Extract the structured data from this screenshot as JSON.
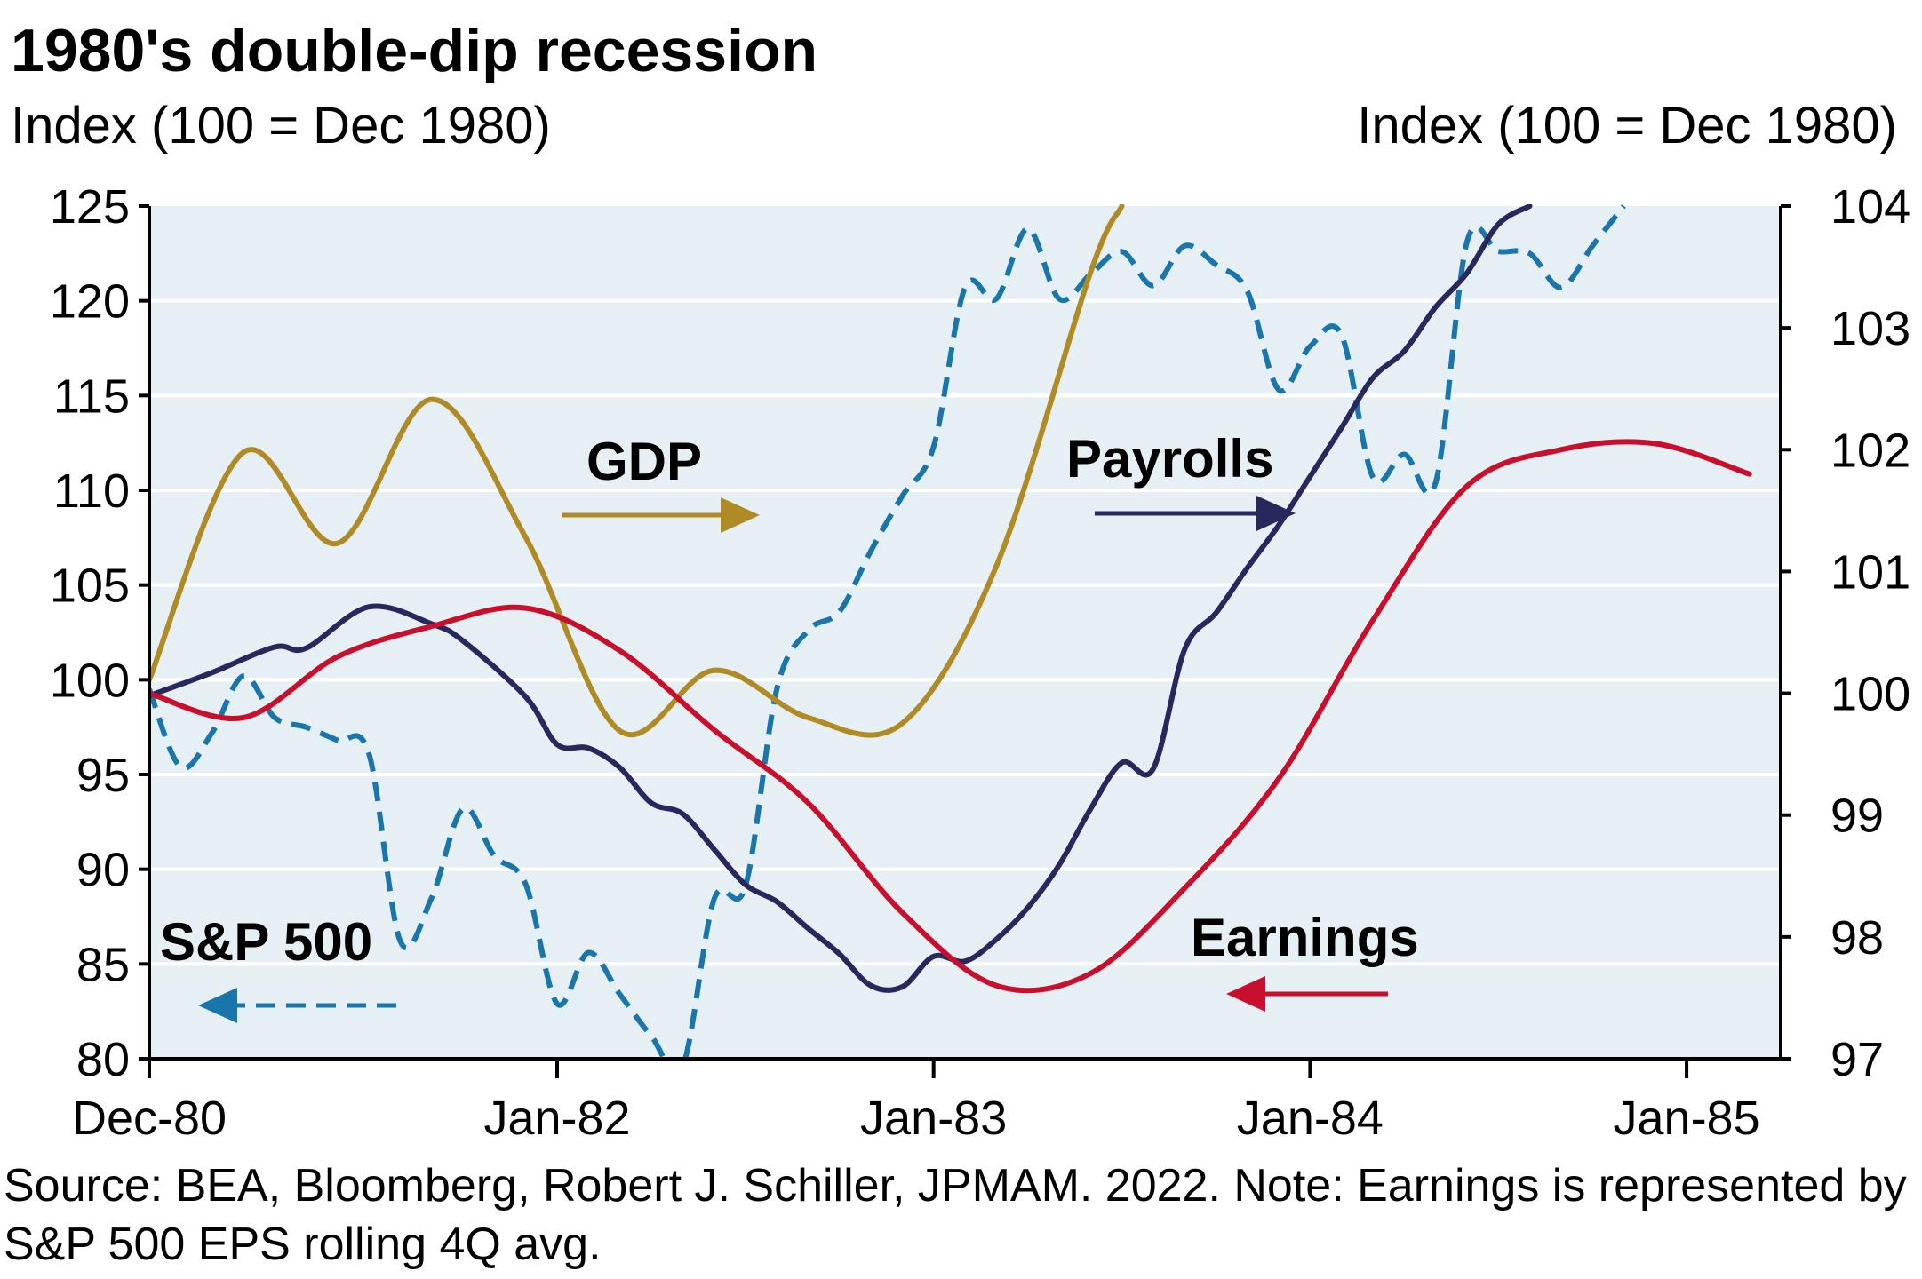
{
  "title": "1980's double-dip recession",
  "left_axis_title": "Index (100 = Dec 1980)",
  "right_axis_title": "Index (100 = Dec 1980)",
  "source_note": "Source: BEA, Bloomberg, Robert J. Schiller, JPMAM. 2022. Note: Earnings is represented by S&P 500 EPS rolling 4Q avg.",
  "colors": {
    "background": "#E6F0F4",
    "gridline": "#FFFFFF",
    "gdp": "#B08A24",
    "payrolls": "#28285C",
    "earnings": "#C8102E",
    "sp500": "#1A75AA"
  },
  "chart_data": {
    "type": "line",
    "title": "1980's double-dip recession",
    "grid": true,
    "x_start": "1980-12",
    "x_end": "1985-04",
    "x_ticks": [
      {
        "date": "1980-12",
        "label": "Dec-80"
      },
      {
        "date": "1982-01",
        "label": "Jan-82"
      },
      {
        "date": "1983-01",
        "label": "Jan-83"
      },
      {
        "date": "1984-01",
        "label": "Jan-84"
      },
      {
        "date": "1985-01",
        "label": "Jan-85"
      }
    ],
    "y_left": {
      "title": "Index (100 = Dec 1980)",
      "min": 80,
      "max": 125,
      "ticks": [
        "80",
        "85",
        "90",
        "95",
        "100",
        "105",
        "110",
        "115",
        "120",
        "125"
      ]
    },
    "y_right": {
      "title": "Index (100 = Dec 1980)",
      "min": 97,
      "max": 104,
      "ticks": [
        "97",
        "98",
        "99",
        "100",
        "101",
        "102",
        "103",
        "104"
      ]
    },
    "series": [
      {
        "name": "S&P 500",
        "axis": "left",
        "style": "dashed",
        "color": "#1A75AA",
        "label_position": "lower-left",
        "arrow_direction": "left",
        "points": [
          {
            "x": "1980-12",
            "y": 99.5
          },
          {
            "x": "1981-01",
            "y": 95.4
          },
          {
            "x": "1981-02",
            "y": 97.2
          },
          {
            "x": "1981-03",
            "y": 100.2
          },
          {
            "x": "1981-04",
            "y": 98.0
          },
          {
            "x": "1981-05",
            "y": 97.5
          },
          {
            "x": "1981-06",
            "y": 96.8
          },
          {
            "x": "1981-07",
            "y": 96.1
          },
          {
            "x": "1981-08",
            "y": 86.2
          },
          {
            "x": "1981-09",
            "y": 88.5
          },
          {
            "x": "1981-10",
            "y": 93.2
          },
          {
            "x": "1981-11",
            "y": 90.7
          },
          {
            "x": "1981-12",
            "y": 89.2
          },
          {
            "x": "1982-01",
            "y": 82.9
          },
          {
            "x": "1982-02",
            "y": 85.6
          },
          {
            "x": "1982-03",
            "y": 83.4
          },
          {
            "x": "1982-04",
            "y": 81.2
          },
          {
            "x": "1982-05",
            "y": 79.6
          },
          {
            "x": "1982-06",
            "y": 88.4
          },
          {
            "x": "1982-07",
            "y": 89.1
          },
          {
            "x": "1982-08",
            "y": 99.5
          },
          {
            "x": "1982-09",
            "y": 102.6
          },
          {
            "x": "1982-10",
            "y": 103.6
          },
          {
            "x": "1982-11",
            "y": 106.8
          },
          {
            "x": "1982-12",
            "y": 109.7
          },
          {
            "x": "1983-01",
            "y": 112.3
          },
          {
            "x": "1983-02",
            "y": 120.7
          },
          {
            "x": "1983-03",
            "y": 120.1
          },
          {
            "x": "1983-04",
            "y": 123.8
          },
          {
            "x": "1983-05",
            "y": 120.1
          },
          {
            "x": "1983-06",
            "y": 121.4
          },
          {
            "x": "1983-07",
            "y": 122.6
          },
          {
            "x": "1983-08",
            "y": 120.8
          },
          {
            "x": "1983-09",
            "y": 122.9
          },
          {
            "x": "1983-10",
            "y": 121.9
          },
          {
            "x": "1983-11",
            "y": 120.5
          },
          {
            "x": "1983-12",
            "y": 115.3
          },
          {
            "x": "1984-01",
            "y": 117.6
          },
          {
            "x": "1984-02",
            "y": 118.2
          },
          {
            "x": "1984-03",
            "y": 110.7
          },
          {
            "x": "1984-04",
            "y": 111.9
          },
          {
            "x": "1984-05",
            "y": 110.4
          },
          {
            "x": "1984-06",
            "y": 123.1
          },
          {
            "x": "1984-07",
            "y": 122.6
          },
          {
            "x": "1984-08",
            "y": 122.5
          },
          {
            "x": "1984-09",
            "y": 120.7
          },
          {
            "x": "1984-10",
            "y": 122.9
          },
          {
            "x": "1984-11",
            "y": 125.0
          }
        ]
      },
      {
        "name": "GDP",
        "axis": "left",
        "style": "solid",
        "color": "#B08A24",
        "label_position": "upper-left",
        "arrow_direction": "right",
        "points": [
          {
            "x": "1980-12",
            "y": 100.0
          },
          {
            "x": "1981-03",
            "y": 112.0
          },
          {
            "x": "1981-06",
            "y": 107.2
          },
          {
            "x": "1981-09",
            "y": 114.8
          },
          {
            "x": "1981-12",
            "y": 107.5
          },
          {
            "x": "1982-03",
            "y": 97.3
          },
          {
            "x": "1982-06",
            "y": 100.5
          },
          {
            "x": "1982-09",
            "y": 98.0
          },
          {
            "x": "1982-12",
            "y": 97.7
          },
          {
            "x": "1983-03",
            "y": 106.0
          },
          {
            "x": "1983-06",
            "y": 121.5
          },
          {
            "x": "1983-07",
            "y": 125.0
          }
        ]
      },
      {
        "name": "Payrolls",
        "axis": "right",
        "style": "solid",
        "color": "#28285C",
        "label_position": "center",
        "arrow_direction": "right",
        "points": [
          {
            "x": "1980-12",
            "y": 99.98
          },
          {
            "x": "1981-02",
            "y": 100.17
          },
          {
            "x": "1981-04",
            "y": 100.38
          },
          {
            "x": "1981-05",
            "y": 100.37
          },
          {
            "x": "1981-07",
            "y": 100.71
          },
          {
            "x": "1981-09",
            "y": 100.57
          },
          {
            "x": "1981-10",
            "y": 100.43
          },
          {
            "x": "1981-12",
            "y": 99.97
          },
          {
            "x": "1982-01",
            "y": 99.58
          },
          {
            "x": "1982-02",
            "y": 99.55
          },
          {
            "x": "1982-03",
            "y": 99.39
          },
          {
            "x": "1982-04",
            "y": 99.1
          },
          {
            "x": "1982-05",
            "y": 99.01
          },
          {
            "x": "1982-06",
            "y": 98.72
          },
          {
            "x": "1982-07",
            "y": 98.43
          },
          {
            "x": "1982-08",
            "y": 98.29
          },
          {
            "x": "1982-09",
            "y": 98.07
          },
          {
            "x": "1982-10",
            "y": 97.86
          },
          {
            "x": "1982-11",
            "y": 97.6
          },
          {
            "x": "1982-12",
            "y": 97.59
          },
          {
            "x": "1983-01",
            "y": 97.84
          },
          {
            "x": "1983-02",
            "y": 97.8
          },
          {
            "x": "1983-03",
            "y": 97.98
          },
          {
            "x": "1983-04",
            "y": 98.24
          },
          {
            "x": "1983-05",
            "y": 98.59
          },
          {
            "x": "1983-06",
            "y": 99.05
          },
          {
            "x": "1983-07",
            "y": 99.43
          },
          {
            "x": "1983-08",
            "y": 99.38
          },
          {
            "x": "1983-09",
            "y": 100.36
          },
          {
            "x": "1983-10",
            "y": 100.66
          },
          {
            "x": "1983-11",
            "y": 101.03
          },
          {
            "x": "1983-12",
            "y": 101.38
          },
          {
            "x": "1984-01",
            "y": 101.78
          },
          {
            "x": "1984-02",
            "y": 102.18
          },
          {
            "x": "1984-03",
            "y": 102.59
          },
          {
            "x": "1984-04",
            "y": 102.81
          },
          {
            "x": "1984-05",
            "y": 103.17
          },
          {
            "x": "1984-06",
            "y": 103.45
          },
          {
            "x": "1984-07",
            "y": 103.85
          },
          {
            "x": "1984-08",
            "y": 104.0
          }
        ]
      },
      {
        "name": "Earnings",
        "axis": "right",
        "style": "solid",
        "color": "#C8102E",
        "label_position": "lower-right",
        "arrow_direction": "left",
        "points": [
          {
            "x": "1980-12",
            "y": 100.0
          },
          {
            "x": "1981-03",
            "y": 99.8
          },
          {
            "x": "1981-06",
            "y": 100.3
          },
          {
            "x": "1981-09",
            "y": 100.55
          },
          {
            "x": "1981-12",
            "y": 100.7
          },
          {
            "x": "1982-03",
            "y": 100.35
          },
          {
            "x": "1982-06",
            "y": 99.7
          },
          {
            "x": "1982-09",
            "y": 99.1
          },
          {
            "x": "1982-12",
            "y": 98.2
          },
          {
            "x": "1983-03",
            "y": 97.6
          },
          {
            "x": "1983-06",
            "y": 97.7
          },
          {
            "x": "1983-09",
            "y": 98.4
          },
          {
            "x": "1983-12",
            "y": 99.3
          },
          {
            "x": "1984-03",
            "y": 100.6
          },
          {
            "x": "1984-06",
            "y": 101.7
          },
          {
            "x": "1984-09",
            "y": 102.0
          },
          {
            "x": "1984-12",
            "y": 102.05
          },
          {
            "x": "1985-03",
            "y": 101.8
          }
        ]
      }
    ]
  }
}
